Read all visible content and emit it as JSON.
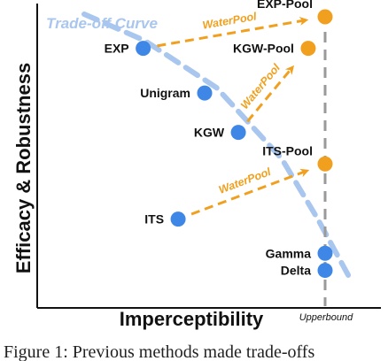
{
  "chart_data": {
    "type": "scatter",
    "xlabel": "Imperceptibility",
    "ylabel": "Efficacy & Robustness",
    "curve_label": "Trade-off Curve",
    "upperbound_label": "Upperbound",
    "arrow_label": "WaterPool",
    "caption": "Figure 1: Previous methods made trade-offs",
    "points": [
      {
        "name": "EXP",
        "group": "previous",
        "x": 0.245,
        "y": 0.87
      },
      {
        "name": "Unigram",
        "group": "previous",
        "x": 0.5,
        "y": 0.7
      },
      {
        "name": "KGW",
        "group": "previous",
        "x": 0.64,
        "y": 0.55
      },
      {
        "name": "ITS",
        "group": "previous",
        "x": 0.39,
        "y": 0.22
      },
      {
        "name": "Gamma",
        "group": "previous",
        "x": 1.0,
        "y": 0.09
      },
      {
        "name": "Delta",
        "group": "previous",
        "x": 1.0,
        "y": 0.025
      },
      {
        "name": "EXP-Pool",
        "group": "waterpool",
        "x": 1.0,
        "y": 0.99
      },
      {
        "name": "KGW-Pool",
        "group": "waterpool",
        "x": 0.93,
        "y": 0.87
      },
      {
        "name": "ITS-Pool",
        "group": "waterpool",
        "x": 1.0,
        "y": 0.43
      }
    ],
    "arrows": [
      {
        "from": "EXP",
        "to": "EXP-Pool"
      },
      {
        "from": "KGW",
        "to": "KGW-Pool"
      },
      {
        "from": "ITS",
        "to": "ITS-Pool"
      }
    ],
    "tradeoff_curve": [
      {
        "x": 0.0,
        "y": 1.0
      },
      {
        "x": 0.25,
        "y": 0.9
      },
      {
        "x": 0.55,
        "y": 0.72
      },
      {
        "x": 0.82,
        "y": 0.45
      },
      {
        "x": 0.97,
        "y": 0.22
      },
      {
        "x": 1.1,
        "y": 0.0
      }
    ],
    "upperbound_x": 1.0,
    "colors": {
      "previous": "#3f87e6",
      "waterpool": "#f0a01e",
      "curve": "#a9c6ef",
      "upperbound": "#9a9a9a"
    }
  }
}
